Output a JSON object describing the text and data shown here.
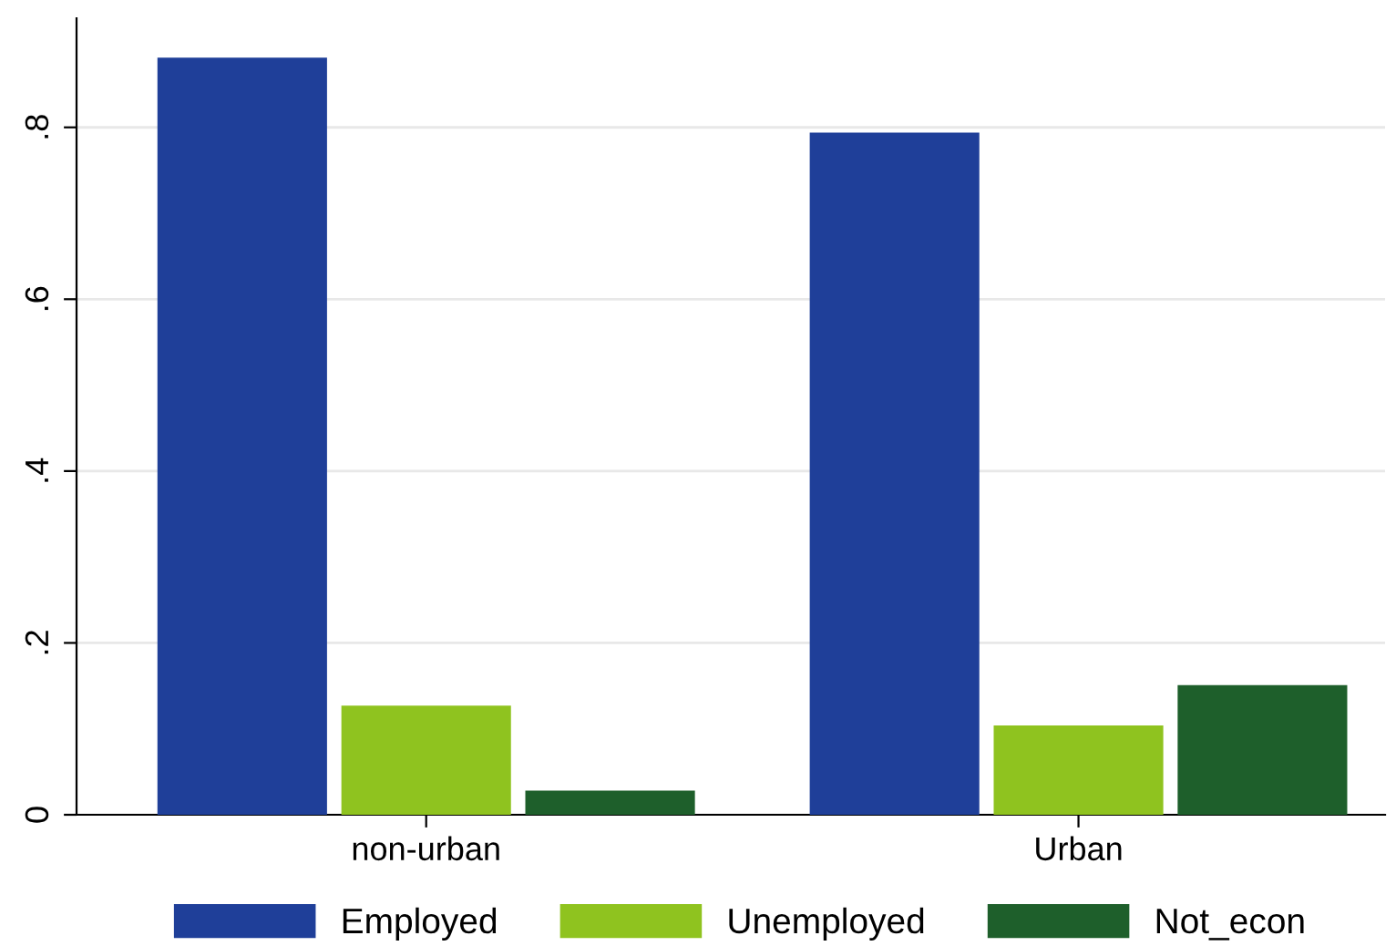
{
  "chart_data": {
    "type": "bar",
    "categories": [
      "non-urban",
      "Urban"
    ],
    "series": [
      {
        "name": "Employed",
        "color": "#1f3f99",
        "values": [
          0.881,
          0.794
        ]
      },
      {
        "name": "Unemployed",
        "color": "#8fc31f",
        "values": [
          0.127,
          0.104
        ]
      },
      {
        "name": "Not_econ",
        "color": "#1e5f2b",
        "values": [
          0.028,
          0.151
        ]
      }
    ],
    "ylim": [
      0,
      0.927
    ],
    "yticks": [
      {
        "value": 0,
        "label": "0"
      },
      {
        "value": 0.2,
        "label": ".2"
      },
      {
        "value": 0.4,
        "label": ".4"
      },
      {
        "value": 0.6,
        "label": ".6"
      },
      {
        "value": 0.8,
        "label": ".8"
      }
    ],
    "grid": "y",
    "legend": "bottom"
  }
}
